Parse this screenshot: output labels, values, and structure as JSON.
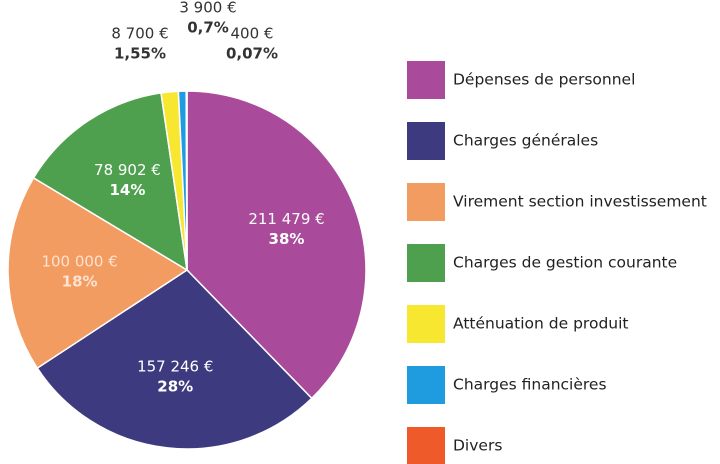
{
  "chart_data": {
    "type": "pie",
    "categories": [
      "Dépenses de personnel",
      "Charges générales",
      "Virement section investissement",
      "Charges de gestion courante",
      "Atténuation de produit",
      "Charges financières",
      "Divers"
    ],
    "values": [
      211479,
      157246,
      100000,
      78902,
      8700,
      3900,
      400
    ],
    "value_labels": [
      "211 479 €",
      "157 246 €",
      "100 000 €",
      "78 902 €",
      "8 700 €",
      "3 900 €",
      "400 €"
    ],
    "percent_labels": [
      "38%",
      "28%",
      "18%",
      "14%",
      "1,55%",
      "0,7%",
      "0,07%"
    ],
    "colors": [
      "#a94a9a",
      "#3e3a80",
      "#f39c62",
      "#4ea04e",
      "#f7e731",
      "#1f9be0",
      "#ee5a2a"
    ],
    "legend": true
  }
}
